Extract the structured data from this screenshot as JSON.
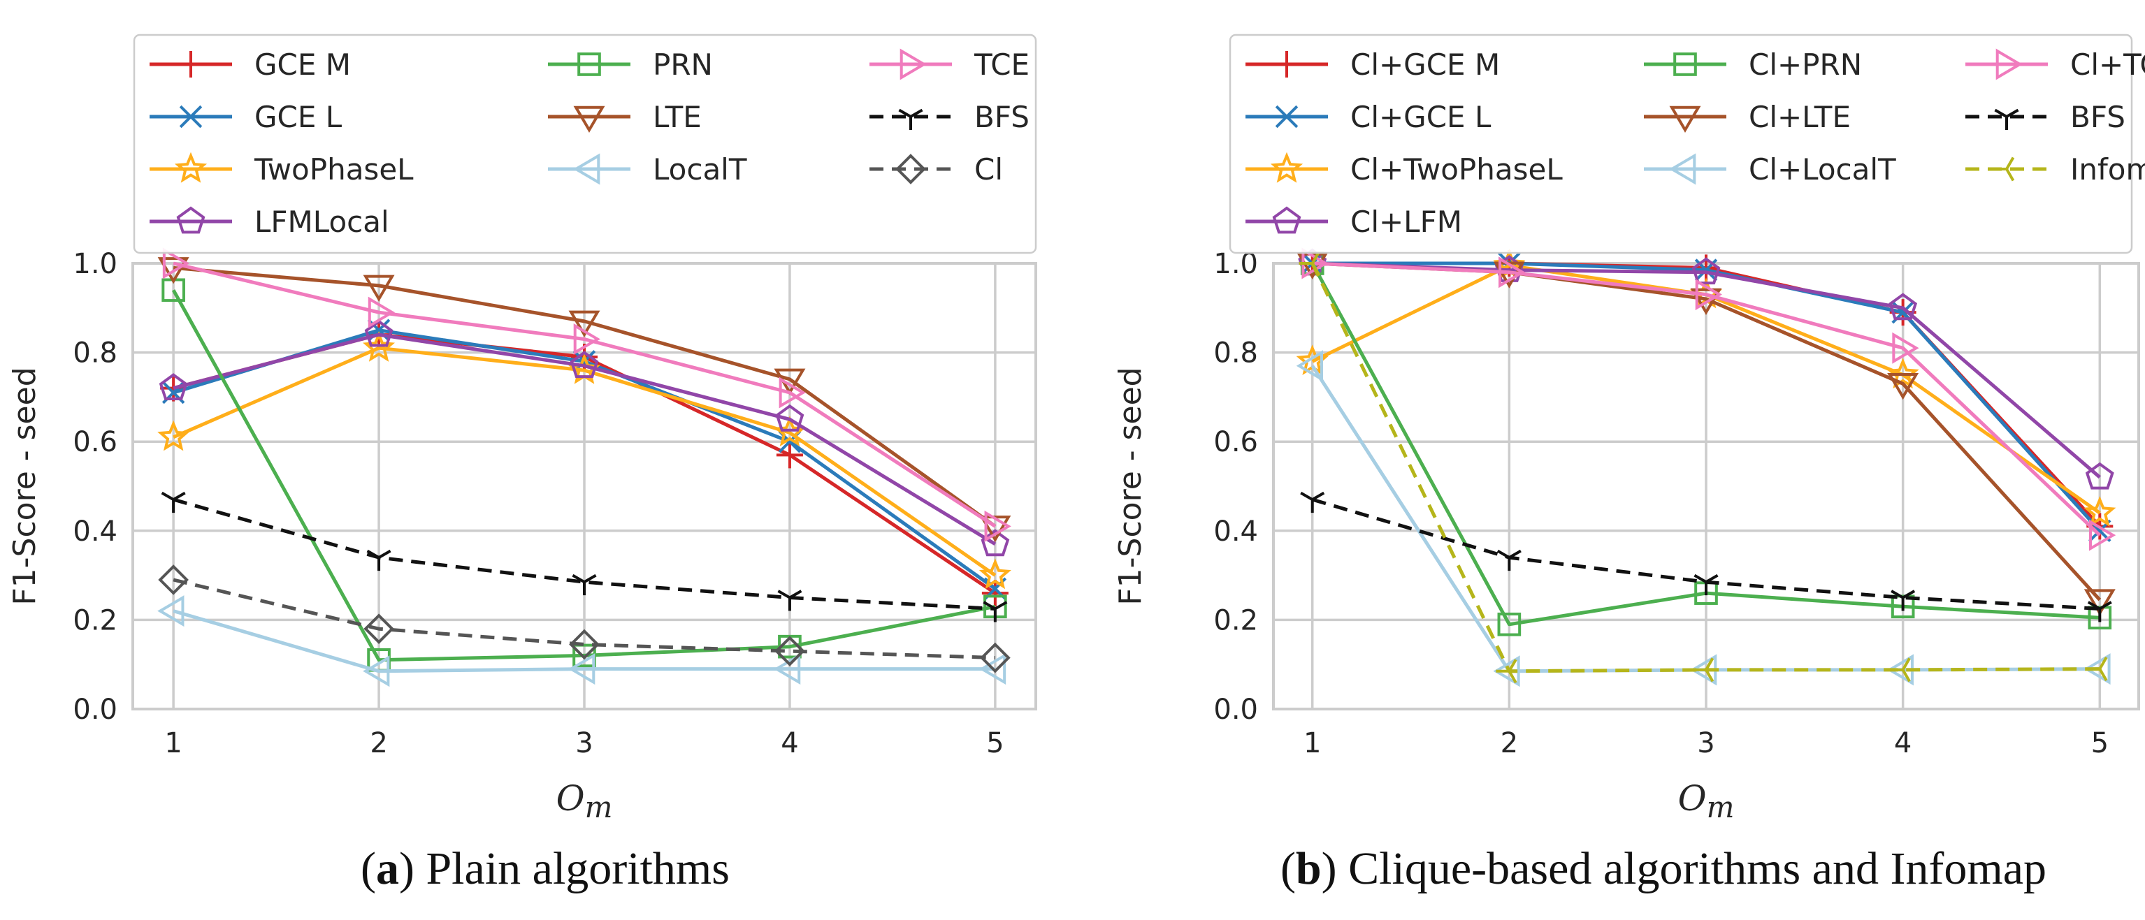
{
  "chart_data": [
    {
      "type": "line",
      "caption_letter": "a",
      "caption_text": "Plain algorithms",
      "xlabel_main": "O",
      "xlabel_sub": "m",
      "ylabel": "F1-Score - seed",
      "x": [
        1,
        2,
        3,
        4,
        5
      ],
      "xticks": [
        "1",
        "2",
        "3",
        "4",
        "5"
      ],
      "ylim": [
        0,
        1
      ],
      "yticks": [
        "0.0",
        "0.2",
        "0.4",
        "0.6",
        "0.8",
        "1.0"
      ],
      "grid": true,
      "legend_position": "top",
      "series": [
        {
          "name": "GCE M",
          "color": "#d62728",
          "marker": "plus",
          "dash": false,
          "values": [
            0.72,
            0.84,
            0.79,
            0.57,
            0.26
          ]
        },
        {
          "name": "GCE L",
          "color": "#2b7bba",
          "marker": "x",
          "dash": false,
          "values": [
            0.71,
            0.85,
            0.78,
            0.6,
            0.27
          ]
        },
        {
          "name": "TwoPhaseL",
          "color": "#ffae1a",
          "marker": "star",
          "dash": false,
          "values": [
            0.61,
            0.81,
            0.76,
            0.62,
            0.3
          ]
        },
        {
          "name": "LFMLocal",
          "color": "#9146a8",
          "marker": "pentagon",
          "dash": false,
          "values": [
            0.72,
            0.84,
            0.77,
            0.65,
            0.37
          ]
        },
        {
          "name": "PRN",
          "color": "#4caf4f",
          "marker": "square",
          "dash": false,
          "values": [
            0.94,
            0.11,
            0.12,
            0.14,
            0.23
          ]
        },
        {
          "name": "LTE",
          "color": "#a6532a",
          "marker": "triangle-down",
          "dash": false,
          "values": [
            0.99,
            0.95,
            0.87,
            0.74,
            0.41
          ]
        },
        {
          "name": "LocalT",
          "color": "#a6cee3",
          "marker": "triangle-left",
          "dash": false,
          "values": [
            0.22,
            0.085,
            0.09,
            0.09,
            0.09
          ]
        },
        {
          "name": "TCE",
          "color": "#f07bbd",
          "marker": "triangle-right",
          "dash": false,
          "values": [
            1.0,
            0.89,
            0.83,
            0.71,
            0.41
          ]
        },
        {
          "name": "BFS",
          "color": "#111111",
          "marker": "tri",
          "dash": true,
          "values": [
            0.47,
            0.34,
            0.285,
            0.25,
            0.225
          ]
        },
        {
          "name": "Cl",
          "color": "#555555",
          "marker": "diamond",
          "dash": true,
          "values": [
            0.29,
            0.18,
            0.145,
            0.13,
            0.115
          ]
        }
      ]
    },
    {
      "type": "line",
      "caption_letter": "b",
      "caption_text": "Clique-based algorithms and Infomap",
      "xlabel_main": "O",
      "xlabel_sub": "m",
      "ylabel": "F1-Score - seed",
      "x": [
        1,
        2,
        3,
        4,
        5
      ],
      "xticks": [
        "1",
        "2",
        "3",
        "4",
        "5"
      ],
      "ylim": [
        0,
        1
      ],
      "yticks": [
        "0.0",
        "0.2",
        "0.4",
        "0.6",
        "0.8",
        "1.0"
      ],
      "grid": true,
      "legend_position": "top",
      "series": [
        {
          "name": "Cl+GCE M",
          "color": "#d62728",
          "marker": "plus",
          "dash": false,
          "values": [
            1.0,
            1.0,
            0.99,
            0.89,
            0.41
          ]
        },
        {
          "name": "Cl+GCE L",
          "color": "#2b7bba",
          "marker": "x",
          "dash": false,
          "values": [
            1.0,
            1.0,
            0.985,
            0.89,
            0.4
          ]
        },
        {
          "name": "Cl+TwoPhaseL",
          "color": "#ffae1a",
          "marker": "star",
          "dash": false,
          "values": [
            0.78,
            0.995,
            0.93,
            0.75,
            0.44
          ]
        },
        {
          "name": "Cl+LFM",
          "color": "#9146a8",
          "marker": "pentagon",
          "dash": false,
          "values": [
            1.0,
            0.985,
            0.98,
            0.9,
            0.52
          ]
        },
        {
          "name": "Cl+PRN",
          "color": "#4caf4f",
          "marker": "square",
          "dash": false,
          "values": [
            1.0,
            0.19,
            0.26,
            0.23,
            0.205
          ]
        },
        {
          "name": "Cl+LTE",
          "color": "#a6532a",
          "marker": "triangle-down",
          "dash": false,
          "values": [
            1.0,
            0.98,
            0.92,
            0.73,
            0.245
          ]
        },
        {
          "name": "Cl+LocalT",
          "color": "#a6cee3",
          "marker": "triangle-left",
          "dash": false,
          "values": [
            0.77,
            0.085,
            0.088,
            0.088,
            0.09
          ]
        },
        {
          "name": "Cl+TCE",
          "color": "#f07bbd",
          "marker": "triangle-right",
          "dash": false,
          "values": [
            1.0,
            0.98,
            0.93,
            0.81,
            0.39
          ]
        },
        {
          "name": "BFS",
          "color": "#111111",
          "marker": "tri",
          "dash": true,
          "values": [
            0.47,
            0.34,
            0.285,
            0.25,
            0.225
          ]
        },
        {
          "name": "Infomap",
          "color": "#b5b51a",
          "marker": "tri-left",
          "dash": true,
          "values": [
            1.0,
            0.085,
            0.088,
            0.088,
            0.09
          ]
        }
      ]
    }
  ]
}
